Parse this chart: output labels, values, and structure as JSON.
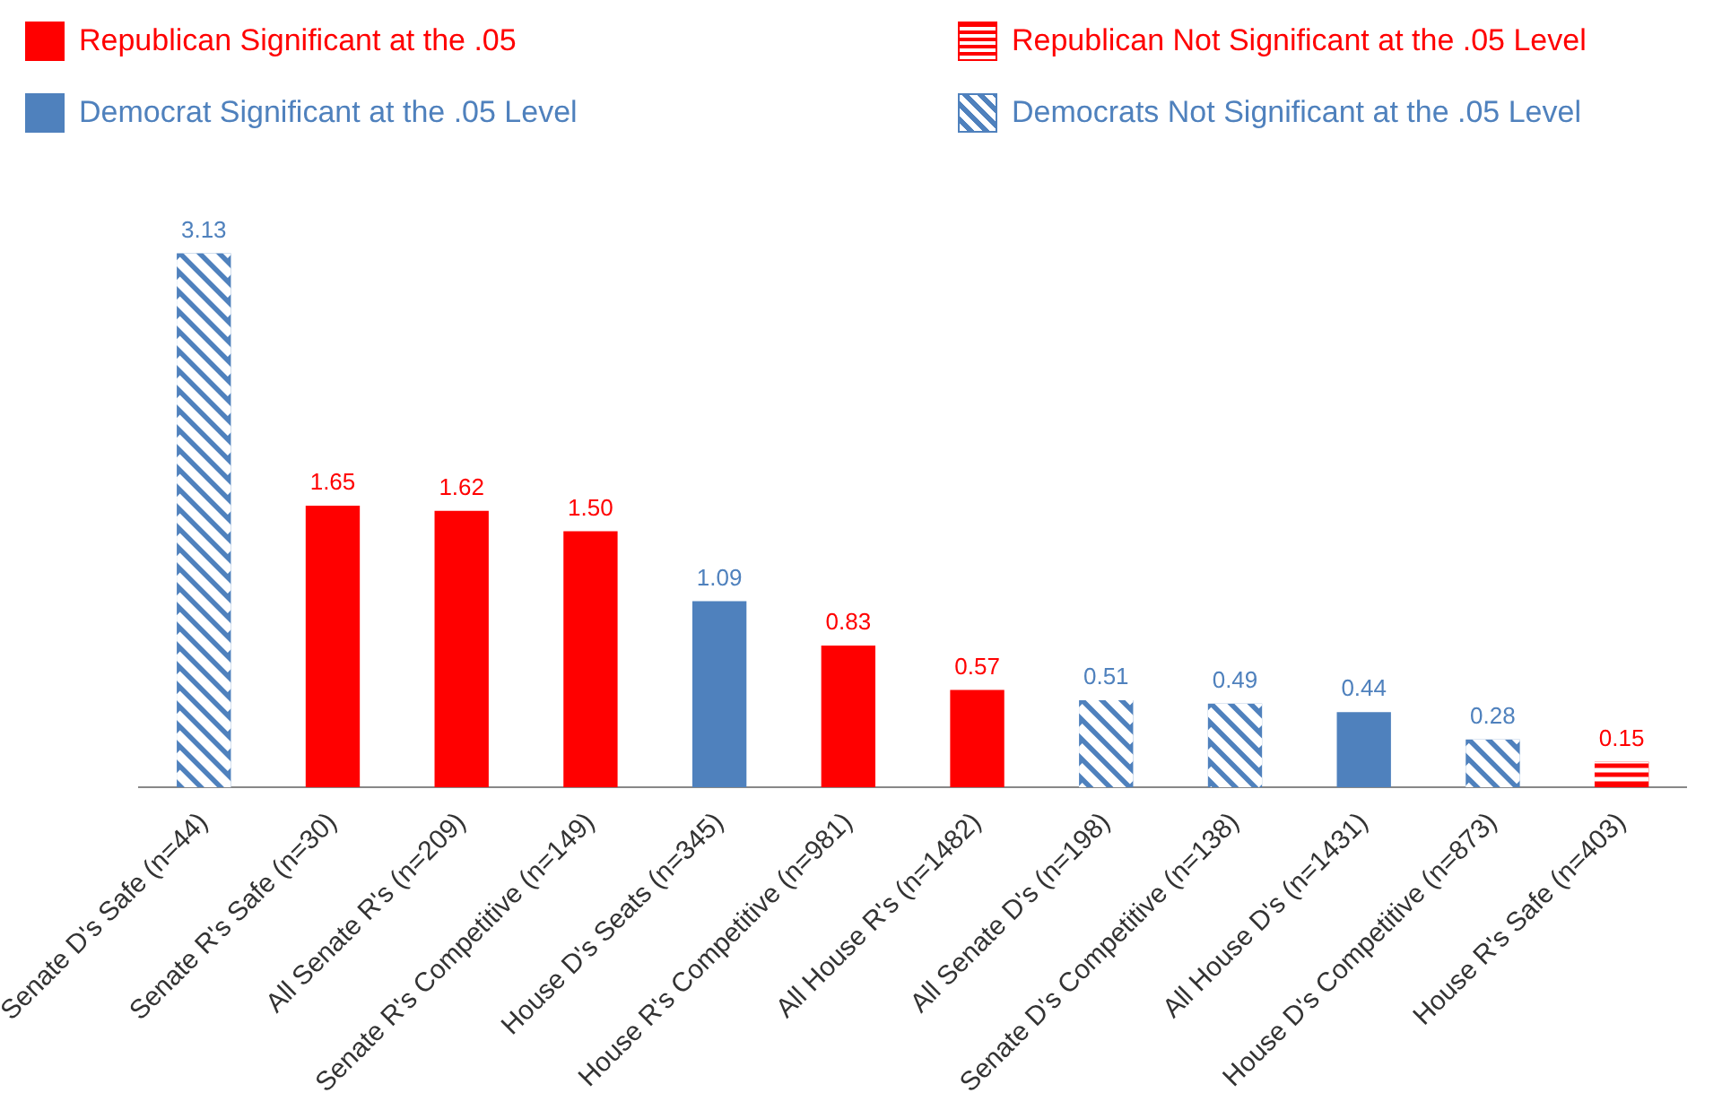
{
  "chart_data": {
    "type": "bar",
    "stacked": true,
    "legend": "top",
    "grid": false,
    "categories": [
      "Senate D's Safe (n=44)",
      "Senate R's Safe (n=30)",
      "All Senate R's (n=209)",
      "Senate R's Competitive (n=149)",
      "House D's Seats (n=345)",
      "House R's Competitive (n=981)",
      "All House R's (n=1482)",
      "All Senate D's (n=198)",
      "Senate D's Competitive (n=138)",
      "All House D's (n=1431)",
      "House D's Competitive (n=873)",
      "House R's Safe (n=403)"
    ],
    "series": [
      {
        "name": "Republican Significant at the .05",
        "color": "#ff0000",
        "values": [
          null,
          1.65,
          1.62,
          1.5,
          null,
          0.83,
          0.57,
          null,
          null,
          null,
          null,
          null
        ],
        "value_labels": [
          null,
          "1.65",
          "1.62",
          "1.50",
          null,
          "0.83",
          "0.57",
          null,
          null,
          null,
          null,
          null
        ]
      },
      {
        "name": "Republican Not Significant at the .05 Level",
        "color": "#ff0000",
        "line_style": "dashed",
        "values": [
          null,
          null,
          null,
          null,
          null,
          null,
          null,
          null,
          null,
          null,
          null,
          0.15
        ],
        "value_labels": [
          null,
          null,
          null,
          null,
          null,
          null,
          null,
          null,
          null,
          null,
          null,
          "0.15"
        ]
      },
      {
        "name": "Democrat Significant at the .05 Level",
        "color": "#4f81bd",
        "values": [
          null,
          null,
          null,
          null,
          1.09,
          null,
          null,
          null,
          null,
          0.44,
          null,
          null
        ],
        "value_labels": [
          null,
          null,
          null,
          null,
          "1.09",
          null,
          null,
          null,
          null,
          "0.44",
          null,
          null
        ]
      },
      {
        "name": "Democrats Not Significant at the .05 Level",
        "color": "#4f81bd",
        "line_style": "dotted",
        "values": [
          3.13,
          null,
          null,
          null,
          null,
          null,
          null,
          0.51,
          0.49,
          null,
          0.28,
          null
        ],
        "value_labels": [
          "3.13",
          null,
          null,
          null,
          null,
          null,
          null,
          "0.51",
          "0.49",
          null,
          "0.28",
          null
        ]
      }
    ]
  }
}
